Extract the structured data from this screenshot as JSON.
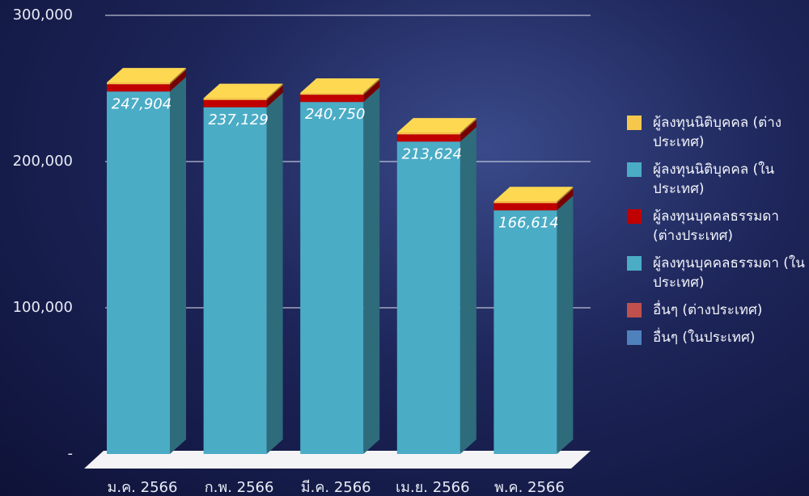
{
  "chart_data": {
    "type": "bar3d-stacked",
    "categories": [
      "ม.ค. 2566",
      "ก.พ. 2566",
      "มี.ค. 2566",
      "เม.ย. 2566",
      "พ.ค. 2566"
    ],
    "series": [
      {
        "name": "ผู้ลงทุนนิติบุคคล (ต่างประเทศ)",
        "color": "#f5c84c",
        "values": [
          1200,
          1200,
          1200,
          1200,
          1200
        ]
      },
      {
        "name": "ผู้ลงทุนนิติบุคคล (ในประเทศ)",
        "color": "#4bacc6",
        "values": [
          0,
          0,
          0,
          0,
          0
        ]
      },
      {
        "name": "ผู้ลงทุนบุคคลธรรมดา (ต่างประเทศ)",
        "color": "#c00000",
        "values": [
          5000,
          5000,
          5000,
          5000,
          5000
        ]
      },
      {
        "name": "ผู้ลงทุนบุคคลธรรมดา (ในประเทศ)",
        "color": "#4bacc6",
        "values": [
          247904,
          237129,
          240750,
          213624,
          166614
        ],
        "value_labels": [
          "247,904",
          "237,129",
          "240,750",
          "213,624",
          "166,614"
        ]
      },
      {
        "name": "อื่นๆ (ต่างประเทศ)",
        "color": "#c0504d",
        "values": [
          0,
          0,
          0,
          0,
          0
        ]
      },
      {
        "name": "อื่นๆ (ในประเทศ)",
        "color": "#4f81bd",
        "values": [
          0,
          0,
          0,
          0,
          0
        ]
      }
    ],
    "ylim": [
      0,
      300000
    ],
    "yticks": [
      {
        "value": 0,
        "label": "-"
      },
      {
        "value": 100000,
        "label": "100,000"
      },
      {
        "value": 200000,
        "label": "200,000"
      },
      {
        "value": 300000,
        "label": "300,000"
      }
    ],
    "grid": true
  }
}
